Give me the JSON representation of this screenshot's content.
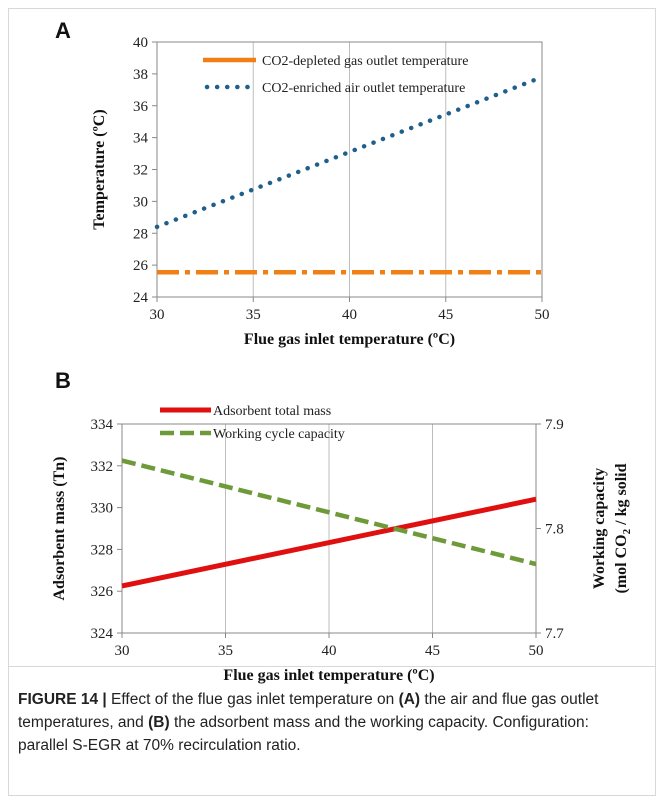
{
  "chart_data": [
    {
      "type": "line",
      "panel_label": "A",
      "xlabel": "Flue gas inlet temperature (ºC)",
      "ylabel": "Temperature (ºC)",
      "xlim": [
        30,
        50
      ],
      "ylim": [
        24,
        40
      ],
      "xticks": [
        "30",
        "35",
        "40",
        "45",
        "50"
      ],
      "yticks": [
        "24",
        "26",
        "28",
        "30",
        "32",
        "34",
        "36",
        "38",
        "40"
      ],
      "grid": "vertical",
      "legend_position": "top-center",
      "series": [
        {
          "name": "CO2-depleted gas outlet temperature",
          "color": "#f07f16",
          "style": "dash-dot",
          "x": [
            30,
            50
          ],
          "y": [
            25.55,
            25.55
          ]
        },
        {
          "name": "CO2-enriched air outlet temperature",
          "color": "#1f5f8b",
          "style": "dotted",
          "x": [
            30,
            50
          ],
          "y": [
            28.4,
            37.8
          ]
        }
      ]
    },
    {
      "type": "line",
      "panel_label": "B",
      "xlabel": "Flue gas inlet temperature (ºC)",
      "ylabel": "Adsorbent mass (Tn)",
      "y2label_line1": "Working capacity",
      "y2label_line2_prefix": "(mol CO",
      "y2label_line2_sub": "2",
      "y2label_line2_suffix": " / kg solid",
      "xlim": [
        30,
        50
      ],
      "ylim": [
        324,
        334
      ],
      "y2lim": [
        7.7,
        7.9
      ],
      "xticks": [
        "30",
        "35",
        "40",
        "45",
        "50"
      ],
      "yticks": [
        "324",
        "326",
        "328",
        "330",
        "332",
        "334"
      ],
      "y2ticks": [
        "7.7",
        "7.8",
        "7.9"
      ],
      "grid": "vertical",
      "legend_position": "top-left",
      "series": [
        {
          "name": "Adsorbent total mass",
          "axis": "left",
          "color": "#e01010",
          "style": "solid",
          "x": [
            30,
            50
          ],
          "y": [
            326.25,
            330.4
          ]
        },
        {
          "name": "Working cycle capacity",
          "axis": "right",
          "color": "#6f9a3a",
          "style": "dashed",
          "x": [
            30,
            50
          ],
          "y": [
            7.865,
            7.766
          ]
        }
      ]
    }
  ],
  "caption": {
    "label": "FIGURE 14 |",
    "part1": " Effect of the flue gas inlet temperature on ",
    "a": "(A)",
    "part2": " the air and flue gas outlet temperatures, and ",
    "b": "(B)",
    "part3": " the adsorbent mass and the working capacity. Configuration: parallel S-EGR at 70% recirculation ratio."
  }
}
